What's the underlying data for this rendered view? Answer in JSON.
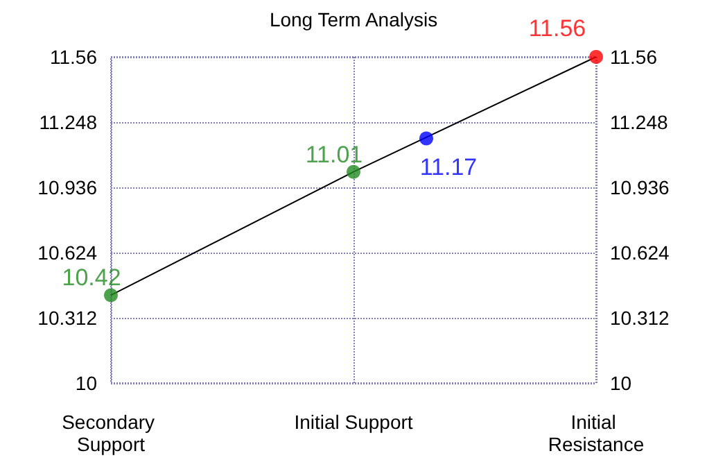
{
  "chart_data": {
    "type": "scatter",
    "title": "Long Term Analysis",
    "categories": [
      "Secondary Support",
      null,
      null,
      null,
      null,
      null,
      null,
      null,
      null,
      null,
      "Initial Support",
      null,
      null,
      null,
      null,
      null,
      null,
      null,
      null,
      null,
      "Initial Resistance"
    ],
    "ylim": [
      10,
      11.56
    ],
    "yticks": [
      10,
      10.312,
      10.624,
      10.936,
      11.248,
      11.56
    ],
    "y2lim": [
      10,
      11.56
    ],
    "y2ticks": [
      10,
      10.312,
      10.624,
      10.936,
      11.248,
      11.56
    ],
    "series": [
      {
        "type": "line",
        "color": "#000000",
        "marker": "none",
        "values": [
          10.42,
          null,
          null,
          null,
          null,
          null,
          null,
          null,
          null,
          null,
          11.01,
          null,
          null,
          null,
          null,
          null,
          null,
          null,
          null,
          null,
          11.56
        ]
      },
      {
        "color": "#228b22",
        "values": [
          10.42,
          null,
          null,
          null,
          null,
          null,
          null,
          null,
          null,
          null,
          11.01,
          null,
          null,
          null,
          null,
          null,
          null,
          null,
          null,
          null,
          null
        ],
        "value_labels": [
          "10.42",
          null,
          null,
          null,
          null,
          null,
          null,
          null,
          null,
          null,
          "11.01",
          null,
          null,
          null,
          null,
          null,
          null,
          null,
          null,
          null,
          null
        ]
      },
      {
        "color": "#0000ff",
        "values": [
          null,
          null,
          null,
          null,
          null,
          null,
          null,
          null,
          null,
          null,
          null,
          null,
          null,
          11.17,
          null,
          null,
          null,
          null,
          null,
          null,
          null
        ],
        "value_labels": [
          null,
          null,
          null,
          null,
          null,
          null,
          null,
          null,
          null,
          null,
          null,
          null,
          null,
          "11.17",
          null,
          null,
          null,
          null,
          null,
          null,
          null
        ]
      },
      {
        "color": "#ff0000",
        "values": [
          null,
          null,
          null,
          null,
          null,
          null,
          null,
          null,
          null,
          null,
          null,
          null,
          null,
          null,
          null,
          null,
          null,
          null,
          null,
          null,
          11.56
        ],
        "value_labels": [
          null,
          null,
          null,
          null,
          null,
          null,
          null,
          null,
          null,
          null,
          null,
          null,
          null,
          null,
          null,
          null,
          null,
          null,
          null,
          null,
          "11.56"
        ]
      }
    ],
    "grid": true,
    "marker": "circle"
  }
}
